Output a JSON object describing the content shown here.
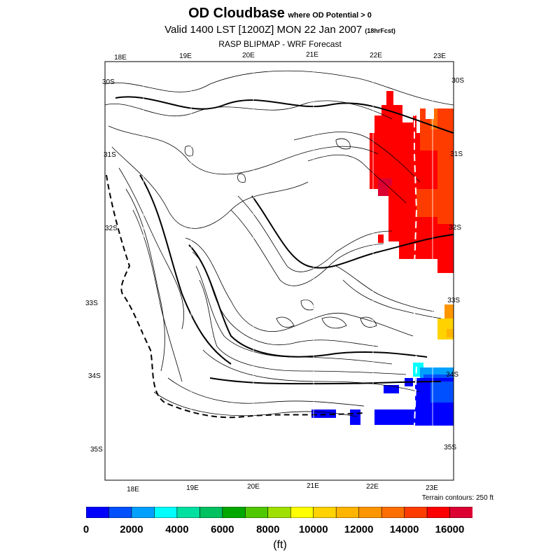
{
  "title": {
    "main": "OD Cloudbase",
    "condition": "where OD Potential > 0",
    "valid": "Valid 1400 LST [1200Z] MON 22 Jan 2007",
    "forecast": "(18hrFcst)",
    "subtitle": "RASP BLIPMAP - WRF Forecast"
  },
  "axes": {
    "top_lon": [
      "18E",
      "19E",
      "20E",
      "21E",
      "22E",
      "23E"
    ],
    "bottom_lon": [
      "18E",
      "19E",
      "20E",
      "21E",
      "22E",
      "23E"
    ],
    "left_lat": [
      "30S",
      "31S",
      "32S",
      "33S",
      "34S",
      "35S"
    ],
    "right_lat": [
      "30S",
      "31S",
      "32S",
      "33S",
      "34S",
      "35S"
    ]
  },
  "terrain_note": "Terrain contours: 250 ft",
  "colorbar": {
    "unit": "(ft)",
    "labels": [
      "0",
      "2000",
      "4000",
      "6000",
      "8000",
      "10000",
      "12000",
      "14000",
      "16000"
    ],
    "colors": [
      "#0000ff",
      "#0050ff",
      "#00a0ff",
      "#00ffff",
      "#00e0a0",
      "#00c060",
      "#00a800",
      "#50c800",
      "#a0e000",
      "#ffff00",
      "#ffd200",
      "#ffb400",
      "#ff9600",
      "#ff6e00",
      "#ff3c00",
      "#ff0000",
      "#dc0032"
    ]
  }
}
